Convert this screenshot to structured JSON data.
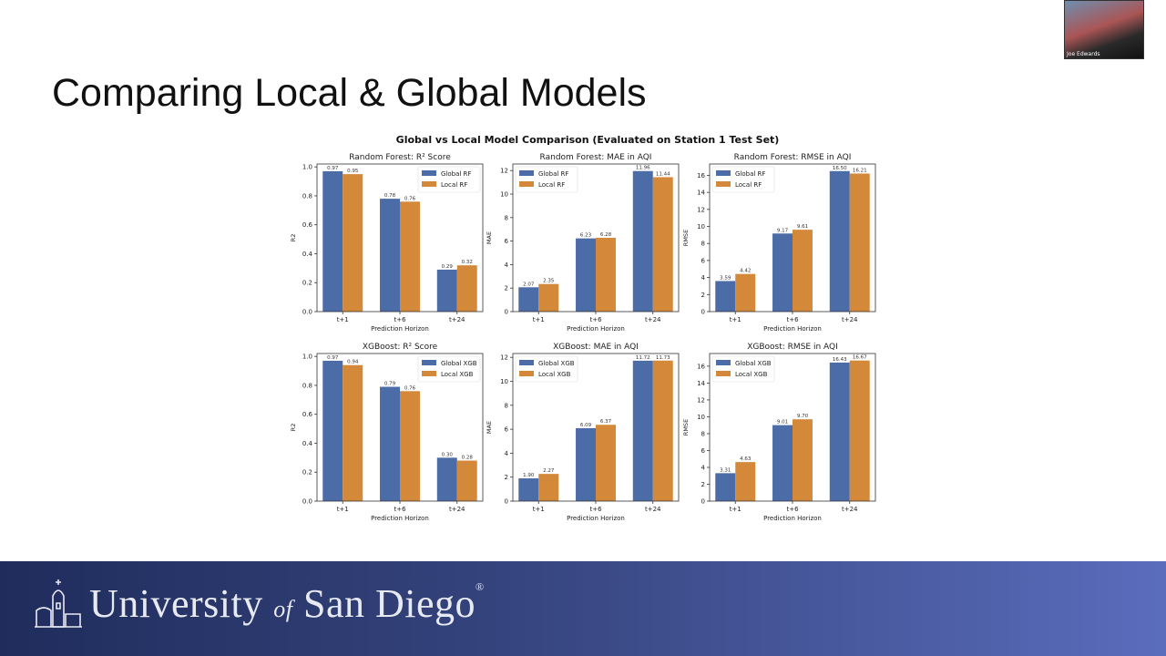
{
  "slide": {
    "title": "Comparing Local & Global Models"
  },
  "figure": {
    "suptitle": "Global vs Local Model Comparison (Evaluated on Station 1 Test Set)"
  },
  "video": {
    "participant_name": "Joe Edwards"
  },
  "footer": {
    "logo_text_main": "University",
    "logo_text_of": "of",
    "logo_text_end": "San Diego",
    "logo_reg": "®"
  },
  "colors": {
    "global": "#4c6ca8",
    "local": "#d4893a",
    "footer_start": "#1f2c5c",
    "footer_end": "#5a6cbc"
  },
  "chart_data": [
    {
      "type": "bar",
      "title": "Random Forest: R² Score",
      "xlabel": "Prediction Horizon",
      "ylabel": "R2",
      "categories": [
        "t+1",
        "t+6",
        "t+24"
      ],
      "series": [
        {
          "name": "Global RF",
          "values": [
            0.97,
            0.78,
            0.29
          ]
        },
        {
          "name": "Local RF",
          "values": [
            0.95,
            0.76,
            0.32
          ]
        }
      ],
      "ylim": [
        0,
        1.02
      ],
      "yticks": [
        "0.0",
        "0.2",
        "0.4",
        "0.6",
        "0.8",
        "1.0"
      ],
      "legend": "top-right",
      "grid": false
    },
    {
      "type": "bar",
      "title": "Random Forest: MAE in AQI",
      "xlabel": "Prediction Horizon",
      "ylabel": "MAE",
      "categories": [
        "t+1",
        "t+6",
        "t+24"
      ],
      "series": [
        {
          "name": "Global RF",
          "values": [
            2.07,
            6.23,
            11.96
          ]
        },
        {
          "name": "Local RF",
          "values": [
            2.35,
            6.28,
            11.44
          ]
        }
      ],
      "ylim": [
        0,
        12.56
      ],
      "yticks": [
        "0",
        "2",
        "4",
        "6",
        "8",
        "10",
        "12"
      ],
      "legend": "top-left",
      "grid": false
    },
    {
      "type": "bar",
      "title": "Random Forest: RMSE in AQI",
      "xlabel": "Prediction Horizon",
      "ylabel": "RMSE",
      "categories": [
        "t+1",
        "t+6",
        "t+24"
      ],
      "series": [
        {
          "name": "Global RF",
          "values": [
            3.59,
            9.17,
            16.5
          ]
        },
        {
          "name": "Local RF",
          "values": [
            4.42,
            9.61,
            16.21
          ]
        }
      ],
      "ylim": [
        0,
        17.33
      ],
      "yticks": [
        "0",
        "2",
        "4",
        "6",
        "8",
        "10",
        "12",
        "14",
        "16"
      ],
      "legend": "top-left",
      "grid": false
    },
    {
      "type": "bar",
      "title": "XGBoost: R² Score",
      "xlabel": "Prediction Horizon",
      "ylabel": "R2",
      "categories": [
        "t+1",
        "t+6",
        "t+24"
      ],
      "series": [
        {
          "name": "Global XGB",
          "values": [
            0.97,
            0.79,
            0.3
          ]
        },
        {
          "name": "Local XGB",
          "values": [
            0.94,
            0.76,
            0.28
          ]
        }
      ],
      "ylim": [
        0,
        1.02
      ],
      "yticks": [
        "0.0",
        "0.2",
        "0.4",
        "0.6",
        "0.8",
        "1.0"
      ],
      "legend": "top-right",
      "grid": false
    },
    {
      "type": "bar",
      "title": "XGBoost: MAE in AQI",
      "xlabel": "Prediction Horizon",
      "ylabel": "MAE",
      "categories": [
        "t+1",
        "t+6",
        "t+24"
      ],
      "series": [
        {
          "name": "Global XGB",
          "values": [
            1.9,
            6.09,
            11.72
          ]
        },
        {
          "name": "Local XGB",
          "values": [
            2.27,
            6.37,
            11.73
          ]
        }
      ],
      "ylim": [
        0,
        12.32
      ],
      "yticks": [
        "0",
        "2",
        "4",
        "6",
        "8",
        "10",
        "12"
      ],
      "legend": "top-left",
      "grid": false
    },
    {
      "type": "bar",
      "title": "XGBoost: RMSE in AQI",
      "xlabel": "Prediction Horizon",
      "ylabel": "RMSE",
      "categories": [
        "t+1",
        "t+6",
        "t+24"
      ],
      "series": [
        {
          "name": "Global XGB",
          "values": [
            3.31,
            9.01,
            16.43
          ]
        },
        {
          "name": "Local XGB",
          "values": [
            4.63,
            9.7,
            16.67
          ]
        }
      ],
      "ylim": [
        0,
        17.5
      ],
      "yticks": [
        "0",
        "2",
        "4",
        "6",
        "8",
        "10",
        "12",
        "14",
        "16"
      ],
      "legend": "top-left",
      "grid": false
    }
  ]
}
